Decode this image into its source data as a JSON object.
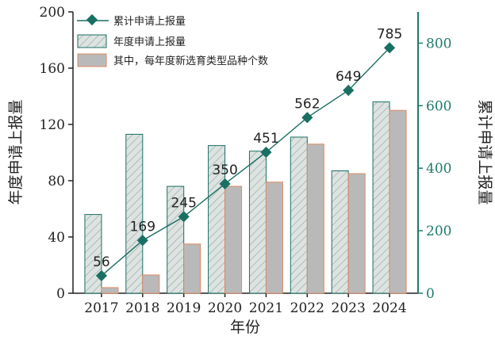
{
  "colors": {
    "teal": "#1a6f63",
    "teal_axis": "#1f7a6c",
    "hatch_fill": "#dde3e1",
    "hatch_line": "#8fa39e",
    "bar2_fill": "#b9b9b9",
    "bar2_edge": "#e08a64",
    "text": "#222222"
  },
  "chart_data": {
    "type": "bar",
    "categories": [
      "2017",
      "2018",
      "2019",
      "2020",
      "2021",
      "2022",
      "2023",
      "2024"
    ],
    "series": [
      {
        "name": "年度申请上报量",
        "axis": "left",
        "kind": "bar",
        "pattern": "hatched",
        "values": [
          56,
          113,
          76,
          105,
          101,
          111,
          87,
          136
        ]
      },
      {
        "name": "其中，每年度新选育类型品种个数",
        "axis": "left",
        "kind": "bar",
        "values": [
          4,
          13,
          35,
          76,
          79,
          106,
          85,
          130
        ]
      },
      {
        "name": "累计申请上报量",
        "axis": "right",
        "kind": "line",
        "marker": "diamond",
        "values": [
          56,
          169,
          245,
          350,
          451,
          562,
          649,
          785
        ],
        "labels": [
          "56",
          "169",
          "245",
          "350",
          "451",
          "562",
          "649",
          "785"
        ]
      }
    ],
    "xlabel": "年份",
    "ylabel": "年度申请上报量",
    "y2label": "累计申请上报量",
    "ylim": [
      0,
      200
    ],
    "y2lim": [
      0,
      900
    ],
    "yticks": [
      "0",
      "40",
      "80",
      "120",
      "160",
      "200"
    ],
    "y2ticks": [
      "0",
      "200",
      "400",
      "600",
      "800"
    ],
    "legend": {
      "placement": "top-left",
      "items": [
        "累计申请上报量",
        "年度申请上报量",
        "其中，每年度新选育类型品种个数"
      ]
    },
    "grid": false
  }
}
